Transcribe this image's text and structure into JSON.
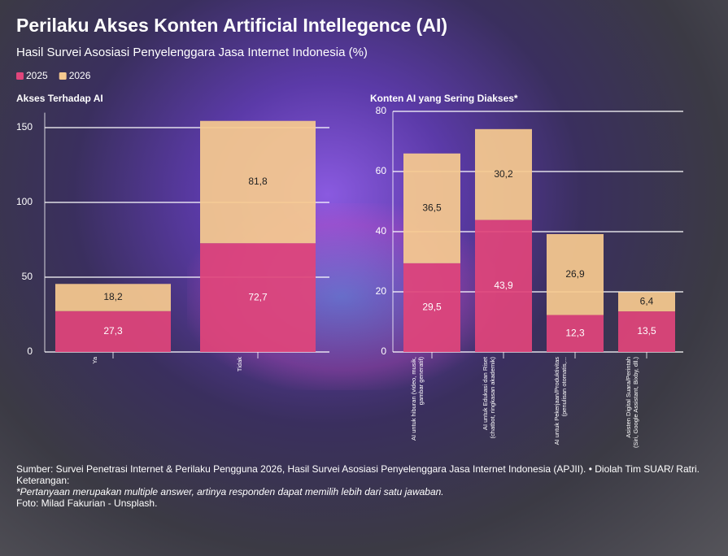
{
  "title": "Perilaku Akses Konten Artificial Intellegence (AI)",
  "subtitle": "Hasil Survei Asosiasi Penyelenggara Jasa Internet Indonesia (%)",
  "chart_data": [
    {
      "type": "stacked-bar",
      "title": "Akses Terhadap AI",
      "categories": [
        "Ya",
        "Tidak"
      ],
      "series": [
        {
          "name": "2025",
          "color": "#e0457b",
          "values": [
            27.3,
            72.7
          ],
          "value_labels": [
            "27,3",
            "72,7"
          ]
        },
        {
          "name": "2026",
          "color": "#f6c98f",
          "values": [
            18.2,
            81.8
          ],
          "value_labels": [
            "18,2",
            "81,8"
          ]
        }
      ],
      "ylim": [
        0,
        160
      ],
      "yticks": [
        0,
        50,
        100,
        150
      ],
      "grid": true
    },
    {
      "type": "stacked-bar",
      "title": "Konten AI yang Sering Diakses*",
      "categories": [
        "AI untuk hiburan (video, musik, gambar generatif)",
        "AI untuk Edukasi dan Riset (chatbot, ringkasan akademik)",
        "AI untuk Pekerjaan/Produktivitas (penulisan otomatis,...",
        "Asisten Digital Suara/Perintah (Siri, Google Assistant, Bixby, dll.)"
      ],
      "series": [
        {
          "color": "#e0457b",
          "values": [
            29.5,
            43.9,
            12.3,
            13.5
          ],
          "value_labels": [
            "29,5",
            "43,9",
            "12,3",
            "13,5"
          ]
        },
        {
          "color": "#f6c98f",
          "values": [
            36.5,
            30.2,
            26.9,
            6.4
          ],
          "value_labels": [
            "36,5",
            "30,2",
            "26,9",
            "6,4"
          ]
        }
      ],
      "ylim": [
        0,
        80
      ],
      "yticks": [
        0,
        20,
        40,
        60,
        80
      ],
      "grid": true
    }
  ],
  "footer": {
    "source": "Sumber: Survei Penetrasi Internet & Perilaku Pengguna 2026, Hasil Survei Asosiasi Penyelenggara Jasa Internet Indonesia (APJII). • Diolah Tim SUAR/ Ratri.",
    "note_heading": "Keterangan:",
    "note": "*Pertanyaan merupakan multiple answer, artinya responden dapat memilih lebih dari satu jawaban.",
    "photo": "Foto: Milad Fakurian - Unsplash."
  }
}
